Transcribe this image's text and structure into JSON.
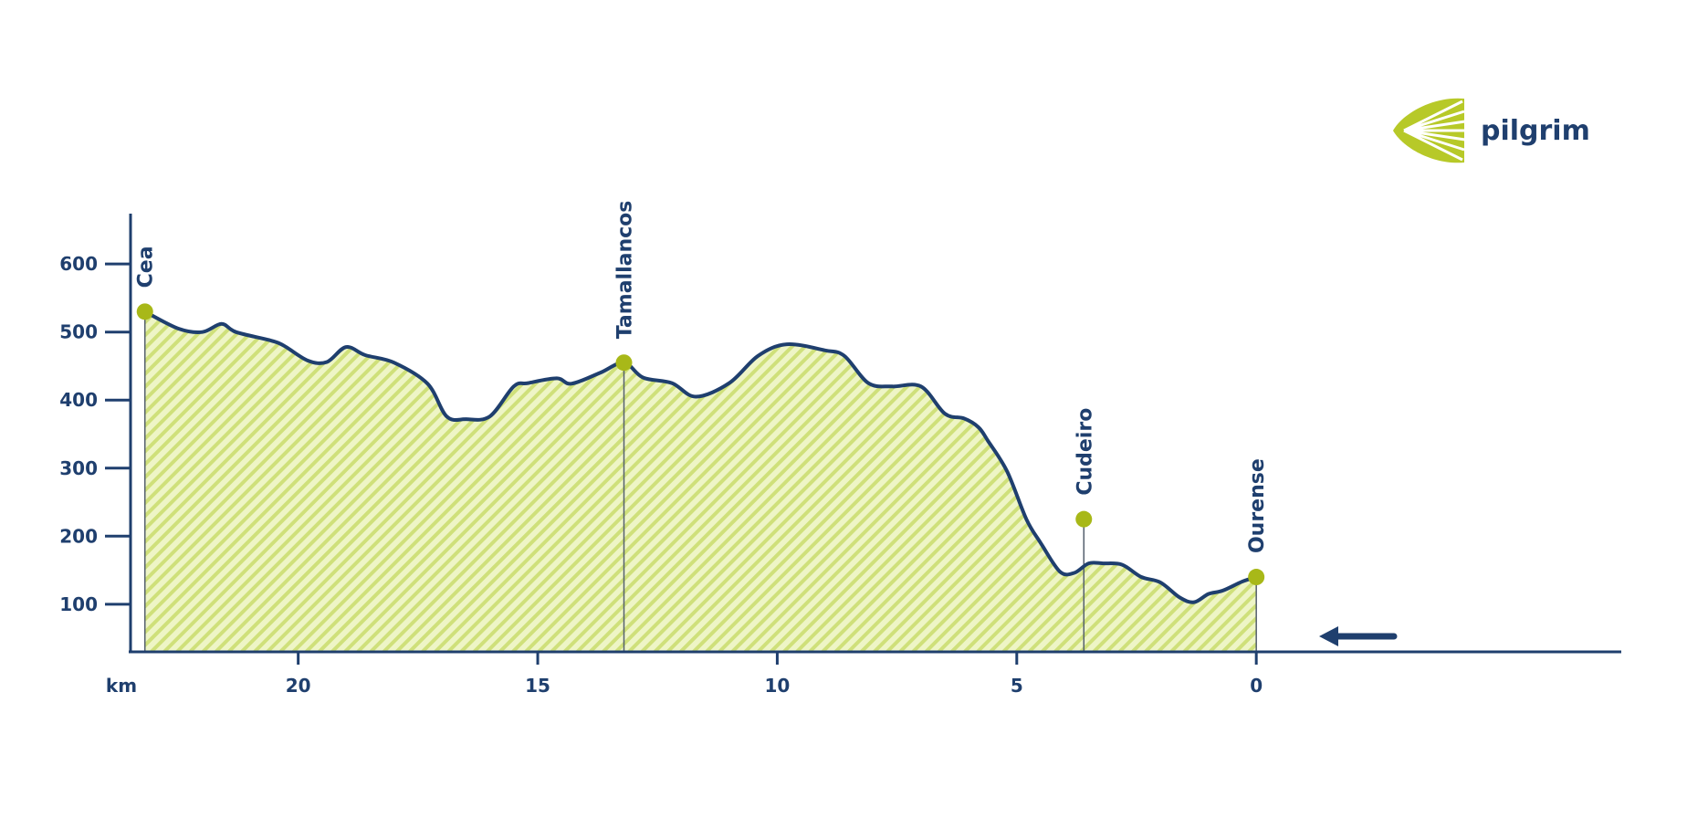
{
  "brand": {
    "name": "pilgrim",
    "logo_icon": "scallop-shell-icon"
  },
  "colors": {
    "line": "#1f3f6e",
    "fill": "#cfe07a",
    "marker": "#a8b818",
    "background": "#ffffff"
  },
  "chart_data": {
    "type": "area",
    "title": "",
    "xlabel": "km",
    "ylabel": "",
    "x_reversed": true,
    "xlim": [
      23.5,
      -7.6
    ],
    "ylim": [
      30,
      670
    ],
    "x_ticks": [
      20,
      15,
      10,
      5,
      0
    ],
    "y_ticks": [
      100,
      200,
      300,
      400,
      500,
      600
    ],
    "grid": false,
    "direction_arrow": "right-to-left",
    "series": [
      {
        "x": [
          23.2,
          22.5,
          22.0,
          21.6,
          21.3,
          20.6,
          20.3,
          19.8,
          19.4,
          19.0,
          18.6,
          18.0,
          17.3,
          16.9,
          16.5,
          16.0,
          15.5,
          15.2,
          14.6,
          14.3,
          13.7,
          13.2,
          12.8,
          12.2,
          11.7,
          11.0,
          10.4,
          9.8,
          9.0,
          8.6,
          8.1,
          7.6,
          7.0,
          6.5,
          6.1,
          5.8,
          5.6,
          5.2,
          4.8,
          4.5,
          4.1,
          3.8,
          3.5,
          3.2,
          2.8,
          2.4,
          2.0,
          1.6,
          1.3,
          1.0,
          0.7,
          0.3,
          0.0
        ],
        "y": [
          530,
          505,
          500,
          512,
          500,
          488,
          480,
          458,
          456,
          478,
          466,
          455,
          424,
          376,
          372,
          376,
          420,
          425,
          432,
          424,
          440,
          455,
          433,
          425,
          405,
          425,
          465,
          482,
          473,
          465,
          425,
          420,
          420,
          380,
          373,
          360,
          340,
          295,
          225,
          190,
          148,
          146,
          160,
          160,
          158,
          140,
          132,
          110,
          103,
          115,
          120,
          133,
          140
        ]
      }
    ],
    "annotations": [
      {
        "label": "Cea",
        "x": 23.2,
        "y": 530
      },
      {
        "label": "Tamallancos",
        "x": 13.2,
        "y": 455
      },
      {
        "label": "Cudeiro",
        "x": 3.6,
        "y": 225
      },
      {
        "label": "Ourense",
        "x": 0.0,
        "y": 140
      }
    ]
  }
}
